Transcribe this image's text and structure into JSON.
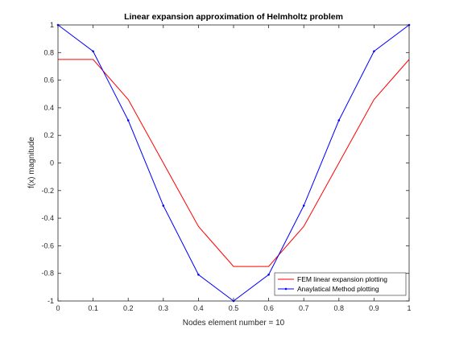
{
  "chart_data": {
    "type": "line",
    "title": "Linear expansion approximation of Helmholtz problem",
    "xlabel": "Nodes element number = 10",
    "ylabel": "f(x) magnitude",
    "xlim": [
      0,
      1
    ],
    "ylim": [
      -1,
      1
    ],
    "xticks": [
      0,
      0.1,
      0.2,
      0.3,
      0.4,
      0.5,
      0.6,
      0.7,
      0.8,
      0.9,
      1
    ],
    "xtick_labels": [
      "0",
      "0.1",
      "0.2",
      "0.3",
      "0.4",
      "0.5",
      "0.6",
      "0.7",
      "0.8",
      "0.9",
      "1"
    ],
    "yticks": [
      -1,
      -0.8,
      -0.6,
      -0.4,
      -0.2,
      0,
      0.2,
      0.4,
      0.6,
      0.8,
      1
    ],
    "ytick_labels": [
      "-1",
      "-0.8",
      "-0.6",
      "-0.4",
      "-0.2",
      "0",
      "0.2",
      "0.4",
      "0.6",
      "0.8",
      "1"
    ],
    "grid": false,
    "legend_position": "bottom-right",
    "series": [
      {
        "name": "FEM linear expansion plotting",
        "color": "#ff0000",
        "marker": "none",
        "x": [
          0,
          0.1,
          0.2,
          0.3,
          0.4,
          0.5,
          0.6,
          0.7,
          0.8,
          0.9,
          1
        ],
        "y": [
          0.75,
          0.75,
          0.46,
          0.0,
          -0.46,
          -0.75,
          -0.75,
          -0.46,
          0.0,
          0.46,
          0.75
        ]
      },
      {
        "name": "Anaylatical Method plotting",
        "color": "#0000ff",
        "marker": "point",
        "x": [
          0,
          0.1,
          0.2,
          0.3,
          0.4,
          0.5,
          0.6,
          0.7,
          0.8,
          0.9,
          1
        ],
        "y": [
          1.0,
          0.809,
          0.309,
          -0.309,
          -0.809,
          -1.0,
          -0.809,
          -0.309,
          0.309,
          0.809,
          1.0
        ]
      }
    ]
  }
}
